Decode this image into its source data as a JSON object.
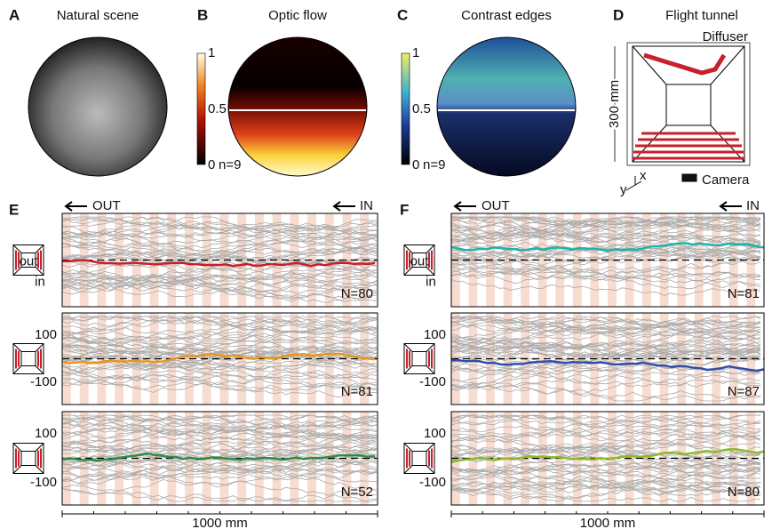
{
  "panels": [
    {
      "letter": "A",
      "title": "Natural scene"
    },
    {
      "letter": "B",
      "title": "Optic flow",
      "colorbar": {
        "ticks": [
          "1",
          "0.5",
          "0"
        ],
        "note": "n=9"
      }
    },
    {
      "letter": "C",
      "title": "Contrast edges",
      "colorbar": {
        "ticks": [
          "1",
          "0.5",
          "0"
        ],
        "note": "n=9"
      }
    },
    {
      "letter": "D",
      "title": "Flight tunnel",
      "labels": {
        "diffuser": "Diffuser",
        "height": "300 mm",
        "camera": "Camera",
        "x": "x",
        "y": "y"
      }
    },
    {
      "letter": "E",
      "direction": {
        "out": "OUT",
        "in": "IN"
      },
      "icon_labels": {
        "out": "out",
        "in": "in"
      },
      "xlabel": "1000 mm",
      "rows": [
        {
          "n": "N=80",
          "yticks": [],
          "color": "#c8202a"
        },
        {
          "n": "N=81",
          "yticks": [
            "100",
            "-100"
          ],
          "color": "#e8961e"
        },
        {
          "n": "N=52",
          "yticks": [
            "100",
            "-100"
          ],
          "color": "#2e8b46"
        }
      ]
    },
    {
      "letter": "F",
      "direction": {
        "out": "OUT",
        "in": "IN"
      },
      "icon_labels": {
        "out": "out",
        "in": "in"
      },
      "xlabel": "1000 mm",
      "rows": [
        {
          "n": "N=81",
          "yticks": [],
          "color": "#1fb3a8"
        },
        {
          "n": "N=87",
          "yticks": [
            "100",
            "-100"
          ],
          "color": "#2f4fa8"
        },
        {
          "n": "N=80",
          "yticks": [
            "100",
            "-100"
          ],
          "color": "#8bbb2c"
        }
      ]
    }
  ]
}
